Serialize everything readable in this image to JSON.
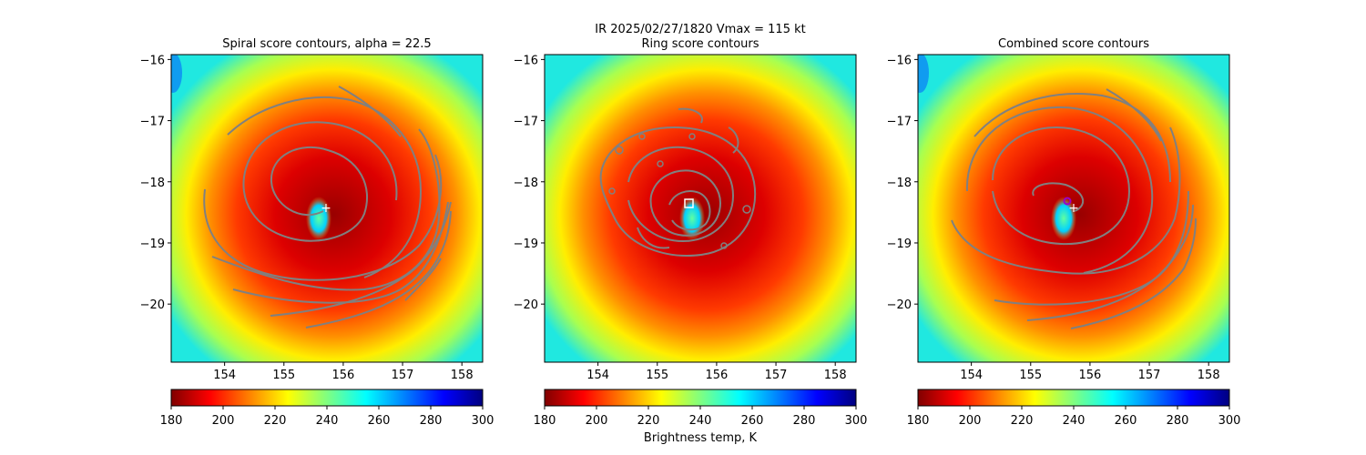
{
  "suptitle": "IR  2025/02/27/1820    Vmax = 115 kt",
  "colorbar_label": "Brightness temp, K",
  "colorbar_ticks": [
    "180",
    "200",
    "220",
    "240",
    "260",
    "280",
    "300"
  ],
  "colormap_stops": [
    "#800000",
    "#ff0000",
    "#ff8000",
    "#ffff00",
    "#80ff80",
    "#00ffff",
    "#0080ff",
    "#0000ff",
    "#000080"
  ],
  "contour_color": "#808080",
  "chart_data": [
    {
      "type": "heatmap",
      "title": "Spiral score contours, alpha = 22.5",
      "xlim": [
        153.1,
        158.35
      ],
      "ylim": [
        -20.95,
        -15.92
      ],
      "x_ticks": [
        "154",
        "155",
        "156",
        "157",
        "158"
      ],
      "y_ticks": [
        "−16",
        "−17",
        "−18",
        "−19",
        "−20"
      ],
      "clim": [
        180,
        300
      ],
      "center_marker": {
        "lon": 155.7,
        "lat": -18.42,
        "symbol": "+"
      }
    },
    {
      "type": "heatmap",
      "title": "Ring score contours",
      "xlim": [
        153.1,
        158.35
      ],
      "ylim": [
        -20.95,
        -15.92
      ],
      "x_ticks": [
        "154",
        "155",
        "156",
        "157",
        "158"
      ],
      "y_ticks": [
        "−16",
        "−17",
        "−18",
        "−19",
        "−20"
      ],
      "clim": [
        180,
        300
      ],
      "center_marker": {
        "lon": 155.55,
        "lat": -18.35,
        "symbol": "square"
      }
    },
    {
      "type": "heatmap",
      "title": "Combined score contours",
      "xlim": [
        153.1,
        158.35
      ],
      "ylim": [
        -20.95,
        -15.92
      ],
      "x_ticks": [
        "154",
        "155",
        "156",
        "157",
        "158"
      ],
      "y_ticks": [
        "−16",
        "−17",
        "−18",
        "−19",
        "−20"
      ],
      "clim": [
        180,
        300
      ],
      "center_marker": {
        "lon": 155.62,
        "lat": -18.32,
        "symbol": "circle"
      },
      "secondary_marker": {
        "lon": 155.72,
        "lat": -18.45,
        "symbol": "+"
      }
    }
  ]
}
